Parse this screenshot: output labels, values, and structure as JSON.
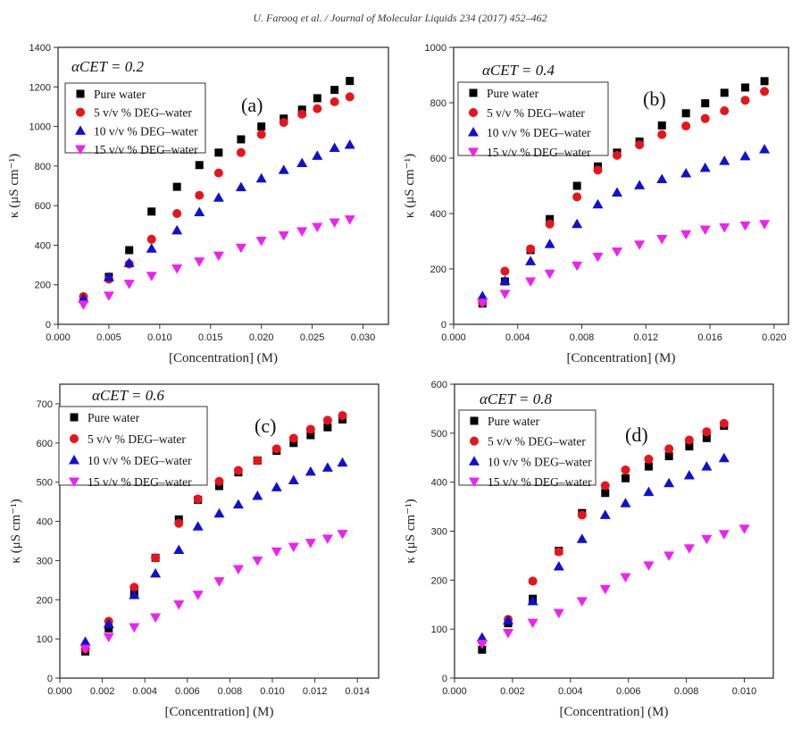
{
  "header": "U. Farooq et al. / Journal of Molecular Liquids 234 (2017) 452–462",
  "colors": {
    "Pure water": "#000000",
    "5 v/v % DEG–water": "#e8141c",
    "10 v/v % DEG–water": "#1010d0",
    "15 v/v % DEG–water": "#f020f0"
  },
  "chart_data": [
    {
      "type": "scatter",
      "panel_label": "(a)",
      "annotation": "αCET = 0.2",
      "xlabel": "[Concentration] (M)",
      "ylabel": "κ (μS cm⁻¹)",
      "xlim": [
        0,
        0.0325
      ],
      "ylim": [
        0,
        1400
      ],
      "xticks": [
        0.0,
        0.005,
        0.01,
        0.015,
        0.02,
        0.025,
        0.03
      ],
      "xtick_labels": [
        "0.000",
        "0.005",
        "0.010",
        "0.015",
        "0.020",
        "0.025",
        "0.030"
      ],
      "yticks": [
        0,
        200,
        400,
        600,
        800,
        1000,
        1200,
        1400
      ],
      "legend": "top-left",
      "series": [
        {
          "name": "Pure water",
          "marker": "square",
          "x": [
            0.0025,
            0.005,
            0.007,
            0.0092,
            0.0117,
            0.0139,
            0.0158,
            0.018,
            0.02,
            0.0222,
            0.024,
            0.0255,
            0.0272,
            0.0287
          ],
          "y": [
            130,
            240,
            375,
            570,
            695,
            805,
            868,
            935,
            1000,
            1040,
            1085,
            1143,
            1185,
            1230
          ]
        },
        {
          "name": "5 v/v %  DEG–water",
          "marker": "circle",
          "x": [
            0.0025,
            0.005,
            0.007,
            0.0092,
            0.0117,
            0.0139,
            0.0158,
            0.018,
            0.02,
            0.0222,
            0.024,
            0.0255,
            0.0272,
            0.0287
          ],
          "y": [
            140,
            228,
            305,
            430,
            560,
            652,
            765,
            868,
            960,
            1020,
            1062,
            1090,
            1125,
            1150
          ]
        },
        {
          "name": "10 v/v % DEG–water",
          "marker": "triangle-up",
          "x": [
            0.0025,
            0.005,
            0.007,
            0.0092,
            0.0117,
            0.0139,
            0.0158,
            0.018,
            0.02,
            0.0222,
            0.024,
            0.0255,
            0.0272,
            0.0287
          ],
          "y": [
            130,
            238,
            310,
            383,
            475,
            567,
            640,
            693,
            737,
            780,
            815,
            852,
            892,
            908
          ]
        },
        {
          "name": "15 v/v % DEG–water",
          "marker": "triangle-down",
          "x": [
            0.0025,
            0.005,
            0.007,
            0.0092,
            0.0117,
            0.0139,
            0.0158,
            0.018,
            0.02,
            0.0222,
            0.024,
            0.0255,
            0.0272,
            0.0287
          ],
          "y": [
            100,
            145,
            205,
            245,
            282,
            318,
            347,
            387,
            422,
            450,
            470,
            492,
            515,
            530
          ]
        }
      ]
    },
    {
      "type": "scatter",
      "panel_label": "(b)",
      "annotation": "αCET = 0.4",
      "xlabel": "[Concentration] (M)",
      "ylabel": "κ (μS cm⁻¹)",
      "xlim": [
        0,
        0.0209
      ],
      "ylim": [
        0,
        1000
      ],
      "xticks": [
        0,
        0.004,
        0.008,
        0.012,
        0.016,
        0.02
      ],
      "xtick_labels": [
        "0.000",
        "0.004",
        "0.008",
        "0.012",
        "0.016",
        "0.020"
      ],
      "yticks": [
        0,
        200,
        400,
        600,
        800,
        1000
      ],
      "legend": "top-left",
      "series": [
        {
          "name": "Pure water",
          "marker": "square",
          "x": [
            0.0018,
            0.0032,
            0.0048,
            0.006,
            0.0077,
            0.009,
            0.0102,
            0.0116,
            0.013,
            0.0145,
            0.0157,
            0.0169,
            0.0182,
            0.0194
          ],
          "y": [
            75,
            155,
            268,
            380,
            500,
            570,
            620,
            660,
            718,
            762,
            798,
            836,
            855,
            878
          ]
        },
        {
          "name": "5 v/v % DEG–water",
          "marker": "circle",
          "x": [
            0.0018,
            0.0032,
            0.0048,
            0.006,
            0.0077,
            0.009,
            0.0102,
            0.0116,
            0.013,
            0.0145,
            0.0157,
            0.0169,
            0.0182,
            0.0194
          ],
          "y": [
            80,
            192,
            272,
            362,
            460,
            557,
            610,
            648,
            685,
            716,
            743,
            771,
            809,
            841
          ]
        },
        {
          "name": "10 v/v % DEG–water",
          "marker": "triangle-up",
          "x": [
            0.0018,
            0.0032,
            0.0048,
            0.006,
            0.0077,
            0.009,
            0.0102,
            0.0116,
            0.013,
            0.0145,
            0.0157,
            0.0169,
            0.0182,
            0.0194
          ],
          "y": [
            102,
            157,
            228,
            290,
            362,
            433,
            476,
            502,
            524,
            545,
            565,
            590,
            607,
            632
          ]
        },
        {
          "name": "15 v/v % DEG–water",
          "marker": "triangle-down",
          "x": [
            0.0018,
            0.0032,
            0.0048,
            0.006,
            0.0077,
            0.009,
            0.0102,
            0.0116,
            0.013,
            0.0145,
            0.0157,
            0.0169,
            0.0182,
            0.0194
          ],
          "y": [
            78,
            110,
            155,
            183,
            212,
            244,
            263,
            288,
            308,
            325,
            342,
            350,
            357,
            362
          ]
        }
      ]
    },
    {
      "type": "scatter",
      "panel_label": "(c)",
      "annotation": "αCET = 0.6",
      "xlabel": "[Concentration] (M)",
      "ylabel": "κ (μS cm⁻¹)",
      "xlim": [
        0,
        0.015
      ],
      "ylim": [
        0,
        750
      ],
      "xticks": [
        0,
        0.002,
        0.004,
        0.006,
        0.008,
        0.01,
        0.012,
        0.014
      ],
      "xtick_labels": [
        "0.000",
        "0.002",
        "0.004",
        "0.006",
        "0.008",
        "0.010",
        "0.012",
        "0.014"
      ],
      "yticks": [
        0,
        100,
        200,
        300,
        400,
        500,
        600,
        700
      ],
      "legend": "top-left",
      "series": [
        {
          "name": "Pure water",
          "marker": "square",
          "x": [
            0.0012,
            0.0023,
            0.0035,
            0.0045,
            0.0056,
            0.0065,
            0.0075,
            0.0084,
            0.0093,
            0.0102,
            0.011,
            0.0118,
            0.0126,
            0.0133
          ],
          "y": [
            68,
            127,
            218,
            307,
            405,
            455,
            490,
            525,
            555,
            580,
            600,
            620,
            640,
            660
          ]
        },
        {
          "name": "5  v/v %  DEG–water",
          "marker": "circle",
          "x": [
            0.0012,
            0.0023,
            0.0035,
            0.0045,
            0.0056,
            0.0065,
            0.0075,
            0.0084,
            0.0093,
            0.0102,
            0.011,
            0.0118,
            0.0126,
            0.0133
          ],
          "y": [
            75,
            145,
            232,
            307,
            395,
            457,
            502,
            530,
            555,
            585,
            612,
            635,
            658,
            670
          ]
        },
        {
          "name": "10 v/v % DEG–water",
          "marker": "triangle-up",
          "x": [
            0.0012,
            0.0023,
            0.0035,
            0.0045,
            0.0056,
            0.0065,
            0.0075,
            0.0084,
            0.0093,
            0.0102,
            0.011,
            0.0118,
            0.0126,
            0.0133
          ],
          "y": [
            93,
            138,
            212,
            267,
            327,
            387,
            420,
            443,
            465,
            487,
            505,
            527,
            537,
            550
          ]
        },
        {
          "name": "15 v/v % DEG–water",
          "marker": "triangle-down",
          "x": [
            0.0012,
            0.0023,
            0.0035,
            0.0045,
            0.0056,
            0.0065,
            0.0075,
            0.0084,
            0.0093,
            0.0102,
            0.011,
            0.0118,
            0.0126,
            0.0133
          ],
          "y": [
            75,
            105,
            130,
            155,
            188,
            213,
            247,
            278,
            300,
            323,
            335,
            345,
            356,
            368
          ]
        }
      ]
    },
    {
      "type": "scatter",
      "panel_label": "(d)",
      "annotation": "αCET = 0.8",
      "xlabel": "[Concentration] (M)",
      "ylabel": "κ (μS cm⁻¹)",
      "xlim": [
        0,
        0.011
      ],
      "ylim": [
        0,
        600
      ],
      "xticks": [
        0,
        0.002,
        0.004,
        0.006,
        0.008,
        0.01
      ],
      "xtick_labels": [
        "0.000",
        "0.002",
        "0.004",
        "0.006",
        "0.008",
        "0.010"
      ],
      "yticks": [
        0,
        100,
        200,
        300,
        400,
        500,
        600
      ],
      "legend": "top-left",
      "series": [
        {
          "name": "Pure water",
          "marker": "square",
          "x": [
            0.00095,
            0.00185,
            0.0027,
            0.0036,
            0.0044,
            0.0052,
            0.0059,
            0.0067,
            0.0074,
            0.0081,
            0.0087,
            0.0093
          ],
          "y": [
            58,
            112,
            162,
            260,
            337,
            378,
            408,
            432,
            453,
            473,
            490,
            515
          ]
        },
        {
          "name": "5 v/v % DEG–water",
          "marker": "circle",
          "x": [
            0.00095,
            0.00185,
            0.0027,
            0.0036,
            0.0044,
            0.0052,
            0.0059,
            0.0067,
            0.0074,
            0.0081,
            0.0087,
            0.0093
          ],
          "y": [
            75,
            120,
            198,
            258,
            333,
            393,
            425,
            447,
            468,
            486,
            503,
            520
          ]
        },
        {
          "name": "10 v/v % DEG–water",
          "marker": "triangle-up",
          "x": [
            0.00095,
            0.00185,
            0.0027,
            0.0036,
            0.0044,
            0.0052,
            0.0059,
            0.0067,
            0.0074,
            0.0081,
            0.0087,
            0.0093
          ],
          "y": [
            83,
            118,
            157,
            228,
            284,
            333,
            357,
            380,
            398,
            414,
            432,
            449
          ]
        },
        {
          "name": "15 v/v % DEG–water",
          "marker": "triangle-down",
          "x": [
            0.00095,
            0.00185,
            0.0027,
            0.0036,
            0.0044,
            0.0052,
            0.0059,
            0.0067,
            0.0074,
            0.0081,
            0.0087,
            0.0093,
            0.01
          ],
          "y": [
            70,
            92,
            113,
            133,
            157,
            182,
            206,
            230,
            250,
            265,
            284,
            294,
            305
          ]
        }
      ]
    }
  ]
}
